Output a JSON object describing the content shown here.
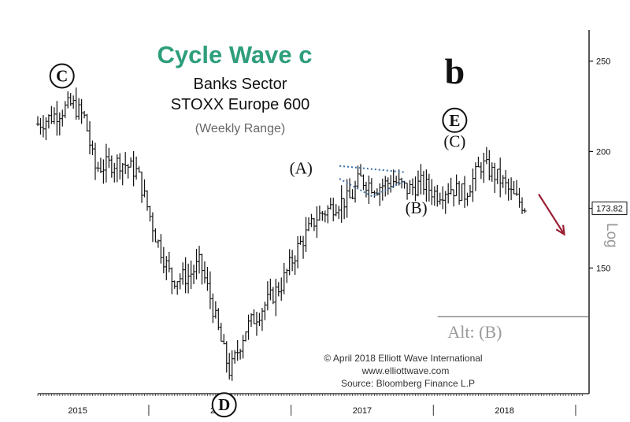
{
  "chart_data": {
    "type": "bar",
    "subtype": "ohlc-weekly",
    "title": "Cycle Wave c",
    "subtitle_lines": [
      "Banks Sector",
      "STOXX Europe 600",
      "(Weekly Range)"
    ],
    "ylim": [
      110,
      270
    ],
    "y_ticks": [
      150,
      200,
      250
    ],
    "y_ticks_labels": [
      "150",
      "200",
      "250"
    ],
    "x_labels": [
      {
        "label": "2015",
        "x": 2015.0
      },
      {
        "label": "2016",
        "x": 2016.0
      },
      {
        "label": "2017",
        "x": 2017.0
      },
      {
        "label": "2018",
        "x": 2018.0
      }
    ],
    "xlim": [
      2014.72,
      2018.55
    ],
    "last_price": 173.82,
    "last_price_label": "173.82",
    "y_axis_side_label": "Log",
    "key_points": [
      {
        "x": 2014.72,
        "y": 214
      },
      {
        "x": 2014.82,
        "y": 218
      },
      {
        "x": 2014.96,
        "y": 225
      },
      {
        "x": 2015.05,
        "y": 217
      },
      {
        "x": 2015.12,
        "y": 192
      },
      {
        "x": 2015.3,
        "y": 195
      },
      {
        "x": 2015.42,
        "y": 190
      },
      {
        "x": 2015.55,
        "y": 162
      },
      {
        "x": 2015.66,
        "y": 146
      },
      {
        "x": 2015.78,
        "y": 147
      },
      {
        "x": 2015.86,
        "y": 152
      },
      {
        "x": 2015.94,
        "y": 138
      },
      {
        "x": 2016.02,
        "y": 123
      },
      {
        "x": 2016.07,
        "y": 116
      },
      {
        "x": 2016.18,
        "y": 129
      },
      {
        "x": 2016.3,
        "y": 136
      },
      {
        "x": 2016.43,
        "y": 144
      },
      {
        "x": 2016.55,
        "y": 158
      },
      {
        "x": 2016.68,
        "y": 170
      },
      {
        "x": 2016.82,
        "y": 176
      },
      {
        "x": 2016.92,
        "y": 178
      },
      {
        "x": 2016.98,
        "y": 187
      },
      {
        "x": 2017.1,
        "y": 183
      },
      {
        "x": 2017.22,
        "y": 186
      },
      {
        "x": 2017.32,
        "y": 182
      },
      {
        "x": 2017.42,
        "y": 185
      },
      {
        "x": 2017.52,
        "y": 180
      },
      {
        "x": 2017.62,
        "y": 183
      },
      {
        "x": 2017.72,
        "y": 180
      },
      {
        "x": 2017.84,
        "y": 194
      },
      {
        "x": 2017.98,
        "y": 186
      },
      {
        "x": 2018.06,
        "y": 179
      },
      {
        "x": 2018.16,
        "y": 173.82
      }
    ],
    "wave_labels": [
      {
        "text": "C",
        "circled": true,
        "x": 2014.89,
        "y": 241
      },
      {
        "text": "D",
        "circled": true,
        "x": 2016.03,
        "y": 107
      },
      {
        "text": "(A)",
        "circled": false,
        "x": 2016.57,
        "y": 192
      },
      {
        "text": "(B)",
        "circled": false,
        "x": 2017.38,
        "y": 174
      },
      {
        "text": "(C)",
        "circled": false,
        "x": 2017.65,
        "y": 205
      },
      {
        "text": "E",
        "circled": true,
        "x": 2017.65,
        "y": 216
      },
      {
        "text": "b",
        "circled": false,
        "bold": true,
        "x": 2017.65,
        "y": 243
      },
      {
        "text": "Alt: (B)",
        "circled": false,
        "x": 2017.6,
        "y": 128
      }
    ],
    "alt_level": 133,
    "triangle_upper": [
      {
        "x": 2016.84,
        "y": 193
      },
      {
        "x": 2017.3,
        "y": 190
      }
    ],
    "triangle_lower": [
      {
        "x": 2016.84,
        "y": 187
      },
      {
        "x": 2017.07,
        "y": 179
      },
      {
        "x": 2017.3,
        "y": 186
      }
    ],
    "projection_arrow": {
      "from": {
        "x": 2018.24,
        "y": 180
      },
      "to": {
        "x": 2018.42,
        "y": 163
      }
    }
  },
  "colors": {
    "title": "#2e9e7c",
    "bars": "#111111",
    "triangle": "#3a6fa8",
    "arrow": "#9a1f33",
    "alt_text": "#9a9a9a",
    "alt_line": "#555555",
    "subtle_text": "#666666"
  },
  "credits": [
    "© April 2018 Elliott Wave International",
    "www.elliottwave.com",
    "Source: Bloomberg Finance L.P"
  ]
}
